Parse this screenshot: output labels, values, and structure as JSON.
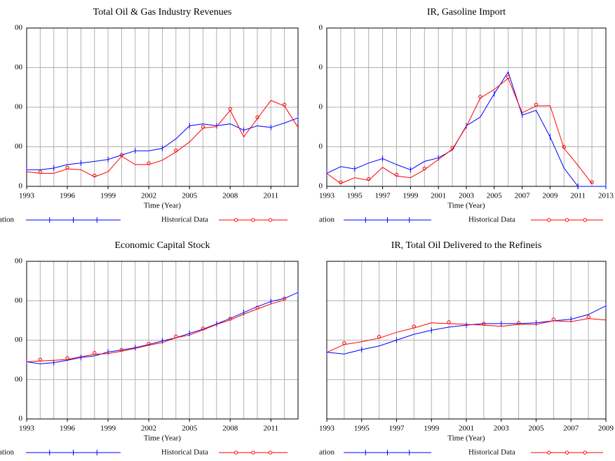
{
  "chart_data": [
    {
      "type": "line",
      "title": "Total Oil & Gas Industry Revenues",
      "xlabel": "Time (Year)",
      "x": [
        1993,
        1994,
        1995,
        1996,
        1997,
        1998,
        1999,
        2000,
        2001,
        2002,
        2003,
        2004,
        2005,
        2006,
        2007,
        2008,
        2009,
        2010,
        2011,
        2012,
        2013
      ],
      "series": [
        {
          "name": "ation",
          "color": "#0000ff",
          "values": [
            42,
            42,
            46,
            55,
            59,
            63,
            68,
            79,
            90,
            90,
            96,
            120,
            153,
            158,
            153,
            158,
            142,
            153,
            149,
            160,
            173
          ]
        },
        {
          "name": "Historical Data",
          "color": "#ff0000",
          "values": [
            37,
            33,
            33,
            44,
            42,
            24,
            37,
            76,
            55,
            55,
            66,
            87,
            112,
            147,
            151,
            192,
            125,
            171,
            217,
            203,
            149
          ]
        }
      ],
      "xlim": [
        1993,
        2013
      ],
      "xticks": [
        1993,
        1996,
        1999,
        2002,
        2005,
        2008,
        2011
      ],
      "ylim": [
        0,
        400
      ],
      "yticks": [
        0,
        {
          "value": 100,
          "label": "00"
        },
        {
          "value": 200,
          "label": "00"
        },
        {
          "value": 300,
          "label": "00"
        },
        {
          "value": 400,
          "label": "00"
        }
      ],
      "grid": true
    },
    {
      "type": "line",
      "title": "IR, Gasoline Import",
      "xlabel": "Time (Year)",
      "x": [
        1993,
        1994,
        1995,
        1996,
        1997,
        1998,
        1999,
        2000,
        2001,
        2002,
        2003,
        2004,
        2005,
        2006,
        2007,
        2008,
        2009,
        2010,
        2011,
        2012,
        2013
      ],
      "series": [
        {
          "name": "ation",
          "color": "#0000ff",
          "values": [
            3.3,
            5,
            4.4,
            5.9,
            7,
            5.5,
            4.2,
            6.3,
            7.2,
            9.2,
            15.3,
            17.5,
            23.4,
            28.9,
            18,
            19.2,
            12.5,
            4.6,
            0,
            0,
            0
          ]
        },
        {
          "name": "Historical Data",
          "color": "#ff0000",
          "values": [
            3.3,
            0.7,
            2.2,
            1.5,
            4.8,
            2.6,
            2.2,
            4.2,
            6.8,
            9.4,
            15.1,
            22.3,
            24.5,
            27.3,
            18.6,
            20.3,
            20.4,
            9.6,
            5.3,
            0.7,
            null
          ]
        }
      ],
      "xlim": [
        1993,
        2013
      ],
      "xticks": [
        1993,
        1995,
        1997,
        1999,
        2001,
        2003,
        2005,
        2007,
        2009,
        2011,
        2013
      ],
      "ylim": [
        0,
        40
      ],
      "yticks": [
        0,
        {
          "value": 10,
          "label": "0"
        },
        {
          "value": 20,
          "label": "0"
        },
        {
          "value": 30,
          "label": "0"
        },
        {
          "value": 40,
          "label": "0"
        }
      ],
      "grid": true
    },
    {
      "type": "line",
      "title": "Economic Capital Stock",
      "xlabel": "Time (Year)",
      "x": [
        1993,
        1994,
        1995,
        1996,
        1997,
        1998,
        1999,
        2000,
        2001,
        2002,
        2003,
        2004,
        2005,
        2006,
        2007,
        2008,
        2009,
        2010,
        2011,
        2012,
        2013
      ],
      "series": [
        {
          "name": "ation",
          "color": "#0000ff",
          "values": [
            145,
            140,
            143,
            149,
            156,
            160,
            170,
            175,
            181,
            189,
            198,
            206,
            217,
            228,
            241,
            255,
            270,
            285,
            298,
            306,
            321
          ]
        },
        {
          "name": "Historical Data",
          "color": "#ff0000",
          "values": [
            145,
            147,
            149,
            151,
            158,
            164,
            166,
            172,
            179,
            187,
            194,
            206,
            213,
            226,
            240,
            251,
            266,
            279,
            292,
            302,
            null
          ]
        }
      ],
      "xlim": [
        1993,
        2013
      ],
      "xticks": [
        1993,
        1996,
        1999,
        2002,
        2005,
        2008,
        2011
      ],
      "ylim": [
        0,
        400
      ],
      "yticks": [
        0,
        {
          "value": 100,
          "label": "00"
        },
        {
          "value": 200,
          "label": "00"
        },
        {
          "value": 300,
          "label": "00"
        },
        {
          "value": 400,
          "label": "00"
        }
      ],
      "grid": true
    },
    {
      "type": "line",
      "title": "IR, Total Oil Delivered to the Refineis",
      "xlabel": "Time (Year)",
      "x": [
        1993,
        1994,
        1995,
        1996,
        1997,
        1998,
        1999,
        2000,
        2001,
        2002,
        2003,
        2004,
        2005,
        2006,
        2007,
        2008,
        2009
      ],
      "series": [
        {
          "name": "ation",
          "color": "#0000ff",
          "values": [
            169,
            165,
            176,
            185,
            200,
            215,
            225,
            233,
            238,
            242,
            242,
            242,
            244,
            249,
            253,
            265,
            287
          ]
        },
        {
          "name": "Historical Data",
          "color": "#ff0000",
          "values": [
            169,
            189,
            196,
            205,
            220,
            231,
            244,
            242,
            240,
            238,
            235,
            240,
            240,
            249,
            247,
            255,
            251
          ]
        }
      ],
      "xlim": [
        1993,
        2009
      ],
      "xticks": [
        1993,
        1995,
        1997,
        1999,
        2001,
        2003,
        2005,
        2007,
        2009
      ],
      "ylim": [
        0,
        400
      ],
      "ygrid": [
        0,
        100,
        200,
        300,
        400
      ],
      "grid": true
    }
  ]
}
